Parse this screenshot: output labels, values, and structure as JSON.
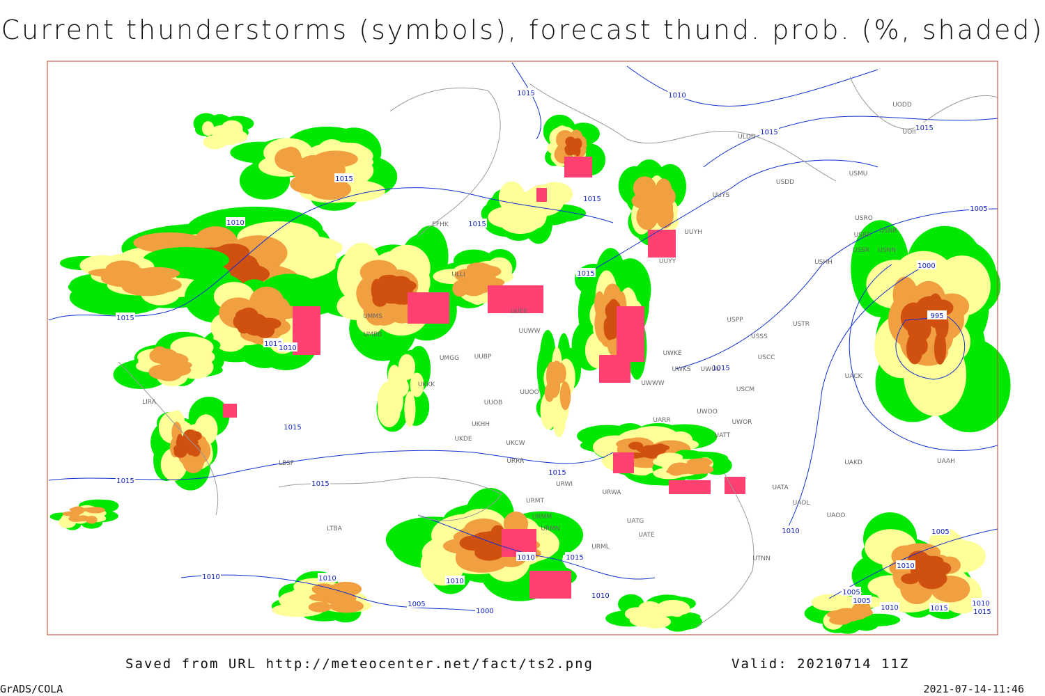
{
  "title": "Current thunderstorms (symbols), forecast thund. prob. (%, shaded)",
  "footer": {
    "source": "Saved from URL http://meteocenter.net/fact/ts2.png",
    "valid": "Valid: 20210714 11Z",
    "software": "GrADS/COLA",
    "timestamp": "2021-07-14-11:46"
  },
  "isobar_labels": [
    1015,
    1010,
    1015,
    1015,
    1015,
    1015,
    1015,
    1010,
    1015,
    1015,
    1010,
    1010,
    1015,
    1015,
    1015,
    1015,
    1015,
    1005,
    1000,
    995,
    1010,
    1005,
    1010,
    1010,
    1015,
    1010,
    1010,
    1010,
    1010,
    1005,
    1000,
    1005,
    1005,
    1010,
    1015,
    1015,
    1010
  ],
  "station_labels": [
    "UUEE",
    "UUWW",
    "UMMS",
    "UMBB",
    "UMGG",
    "UUBP",
    "UKKK",
    "UUOB",
    "UUOO",
    "UKHH",
    "UKDE",
    "UKCW",
    "URRR",
    "URWI",
    "URWA",
    "URMT",
    "URMM",
    "URMN",
    "URML",
    "UATG",
    "UATE",
    "UTNN",
    "UATA",
    "UAOL",
    "UAOO",
    "UAKD",
    "UACK",
    "UAAH",
    "USCM",
    "USCC",
    "USSS",
    "USTR",
    "USPP",
    "UWKE",
    "UWKS",
    "UWUU",
    "UWWW",
    "UARR",
    "UWOO",
    "UWOR",
    "UATT",
    "UUYY",
    "UUYH",
    "UUYS",
    "ULDD",
    "USDD",
    "USMU",
    "USRO",
    "USRR",
    "USNR",
    "USSR",
    "USNN",
    "USHH",
    "UODD",
    "UOII",
    "EFHK",
    "ULLI",
    "LIRA",
    "LBSF",
    "LTBA"
  ]
}
